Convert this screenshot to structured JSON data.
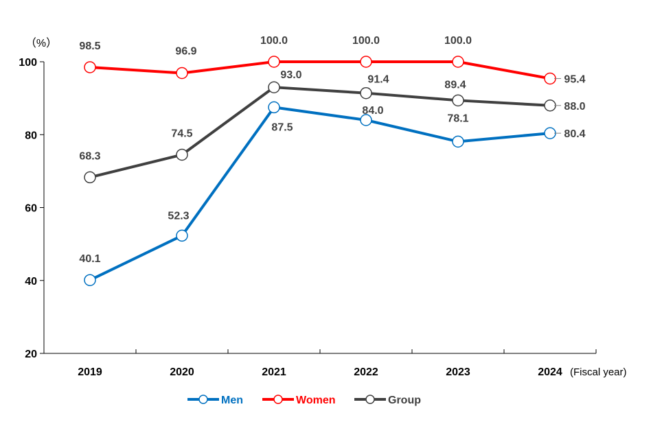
{
  "chart_data": {
    "type": "line",
    "x": [
      "2019",
      "2020",
      "2021",
      "2022",
      "2023",
      "2024"
    ],
    "xlabel": "(Fiscal year)",
    "ylabel": "（%）",
    "ylim": [
      20,
      100
    ],
    "yticks": [
      20,
      40,
      60,
      80,
      100
    ],
    "grid": false,
    "legend_position": "bottom",
    "series": [
      {
        "name": "Men",
        "color": "#0070C0",
        "values": [
          40.1,
          52.3,
          87.5,
          84.0,
          78.1,
          80.4
        ],
        "labels": [
          "40.1",
          "52.3",
          "87.5",
          "84.0",
          "78.1",
          "80.4"
        ]
      },
      {
        "name": "Women",
        "color": "#FF0000",
        "values": [
          98.5,
          96.9,
          100.0,
          100.0,
          100.0,
          95.4
        ],
        "labels": [
          "98.5",
          "96.9",
          "100.0",
          "100.0",
          "100.0",
          "95.4"
        ]
      },
      {
        "name": "Group",
        "color": "#404040",
        "values": [
          68.3,
          74.5,
          93.0,
          91.4,
          89.4,
          88.0
        ],
        "labels": [
          "68.3",
          "74.5",
          "93.0",
          "91.4",
          "89.4",
          "88.0"
        ]
      }
    ]
  }
}
